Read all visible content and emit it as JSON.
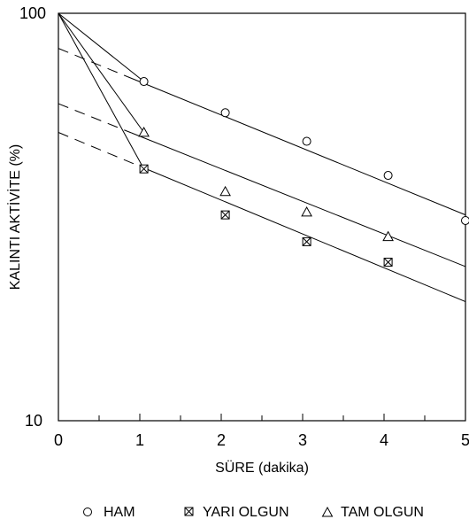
{
  "chart_data": {
    "type": "scatter",
    "xlabel": "SÜRE (dakika)",
    "ylabel": "KALINTI AKTİVİTE (%)",
    "xlim": [
      0,
      5
    ],
    "ylim": [
      10,
      100
    ],
    "yscale": "log",
    "grid": false,
    "legend_position": "bottom",
    "x_ticks": [
      0,
      1,
      2,
      3,
      4,
      5
    ],
    "x_tick_labels": [
      "0",
      "1",
      "2",
      "3",
      "4",
      "5"
    ],
    "y_tick_labels": [
      "10",
      "100"
    ],
    "series": [
      {
        "name": "HAM",
        "marker": "circle",
        "points": [
          [
            1.05,
            68
          ],
          [
            2.05,
            57
          ],
          [
            3.05,
            48.5
          ],
          [
            4.05,
            40
          ],
          [
            5.0,
            31
          ]
        ],
        "fit_line": {
          "at_0": 82,
          "at_5": 32,
          "extrapolated_to": 0.85
        }
      },
      {
        "name": "YARI OLGUN",
        "marker": "square-x",
        "points": [
          [
            1.05,
            41.5
          ],
          [
            2.05,
            32
          ],
          [
            3.05,
            27.5
          ],
          [
            4.05,
            24.5
          ]
        ],
        "fit_line": {
          "at_0": 51,
          "at_5": 19.6,
          "extrapolated_to": 1.05
        }
      },
      {
        "name": "TAM OLGUN",
        "marker": "triangle",
        "points": [
          [
            1.05,
            51
          ],
          [
            2.05,
            36.5
          ],
          [
            3.05,
            32.5
          ],
          [
            4.05,
            28.3
          ]
        ],
        "fit_line": {
          "at_0": 60,
          "at_5": 23.9,
          "extrapolated_to": 0.9
        }
      }
    ],
    "initial_lines_from": [
      0,
      100
    ]
  }
}
